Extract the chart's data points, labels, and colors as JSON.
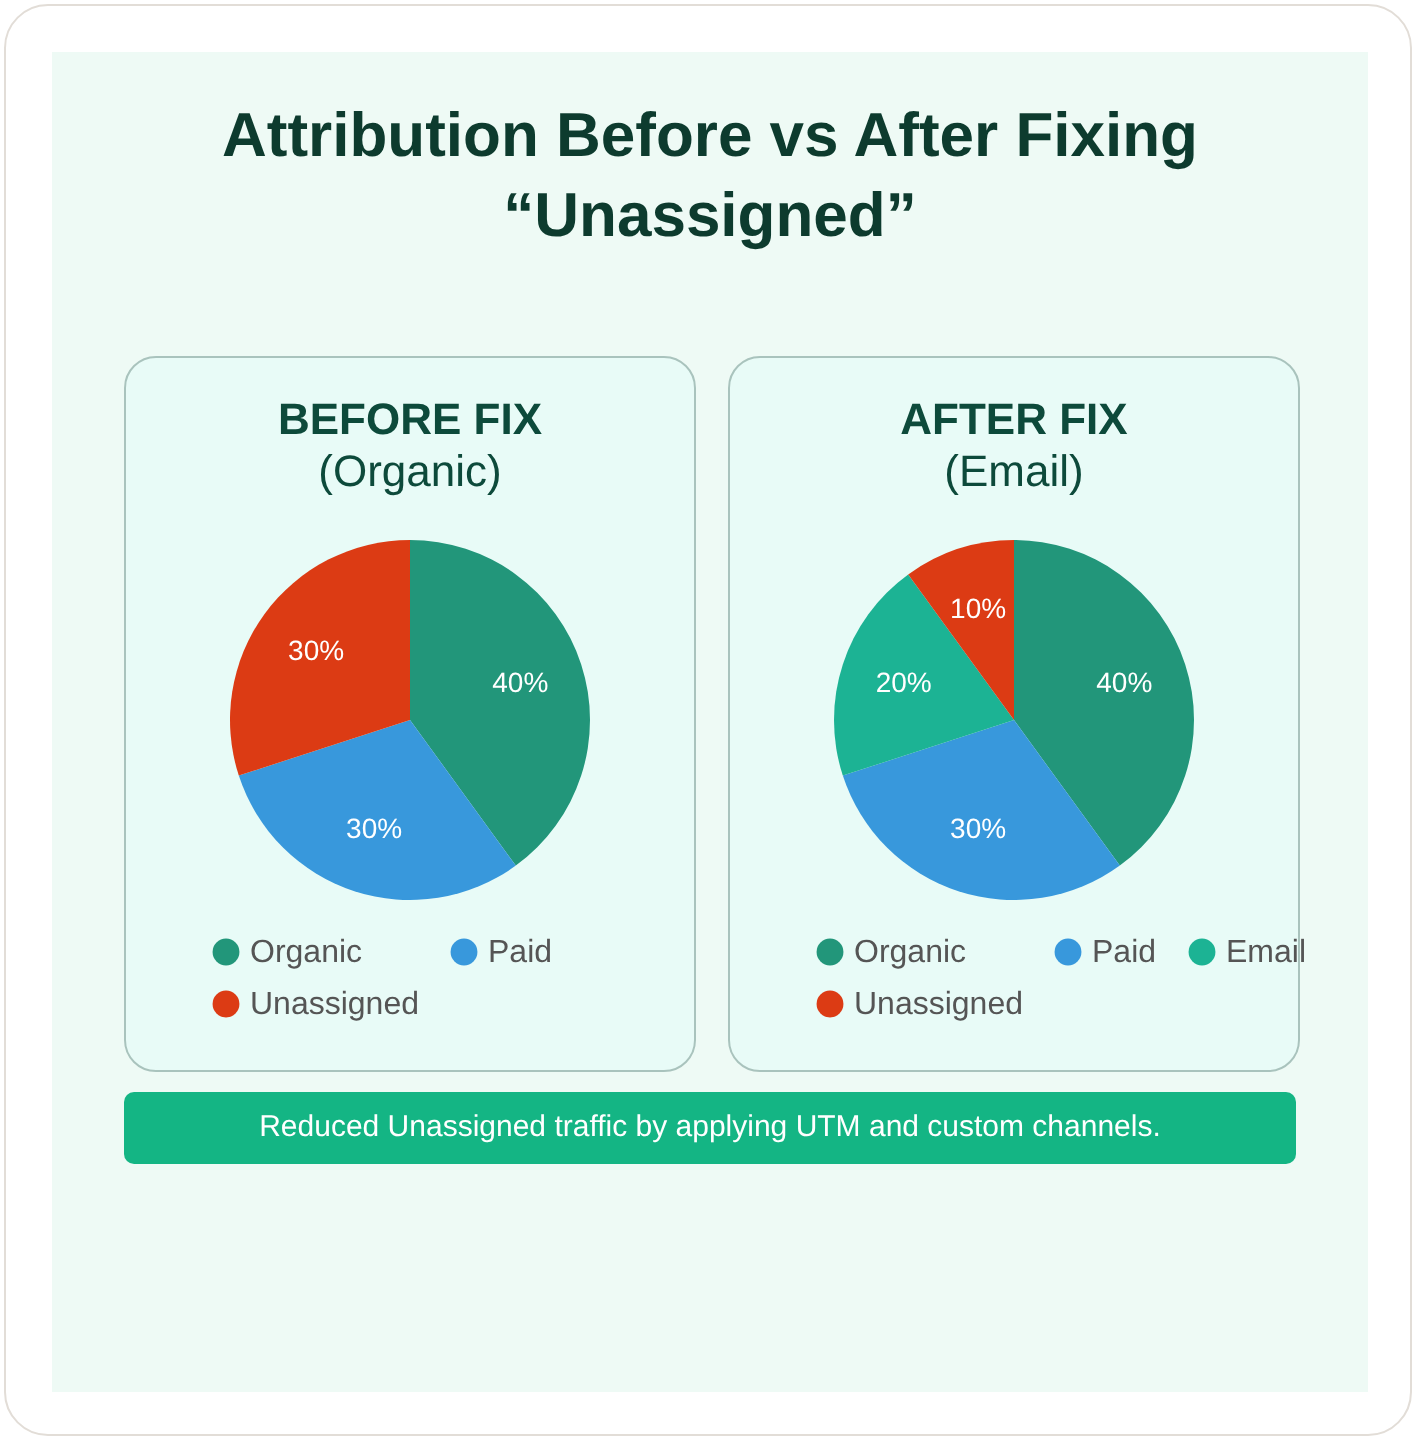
{
  "chart_data": [
    {
      "type": "other",
      "title": "Attribution Before vs After Fixing “Unassigned”",
      "annotations": [
        "Reduced Unassigned traffic by applying UTM and custom channels."
      ]
    },
    {
      "type": "pie",
      "title": "BEFORE FIX",
      "subtitle": "(Organic)",
      "categories": [
        "Organic",
        "Paid",
        "Unassigned"
      ],
      "values": [
        40,
        30,
        30
      ],
      "value_labels": [
        "40%",
        "30%",
        "30%"
      ],
      "colors": [
        "#22967a",
        "#3898dc",
        "#dc3b14"
      ],
      "legend": "bottom"
    },
    {
      "type": "pie",
      "title": "AFTER FIX",
      "subtitle": "(Email)",
      "categories": [
        "Organic",
        "Paid",
        "Email",
        "Unassigned"
      ],
      "values": [
        40,
        30,
        20,
        10
      ],
      "value_labels": [
        "40%",
        "30%",
        "20%",
        "10%"
      ],
      "colors": [
        "#22967a",
        "#3898dc",
        "#1cb394",
        "#dc3b14"
      ],
      "legend": "bottom"
    }
  ]
}
